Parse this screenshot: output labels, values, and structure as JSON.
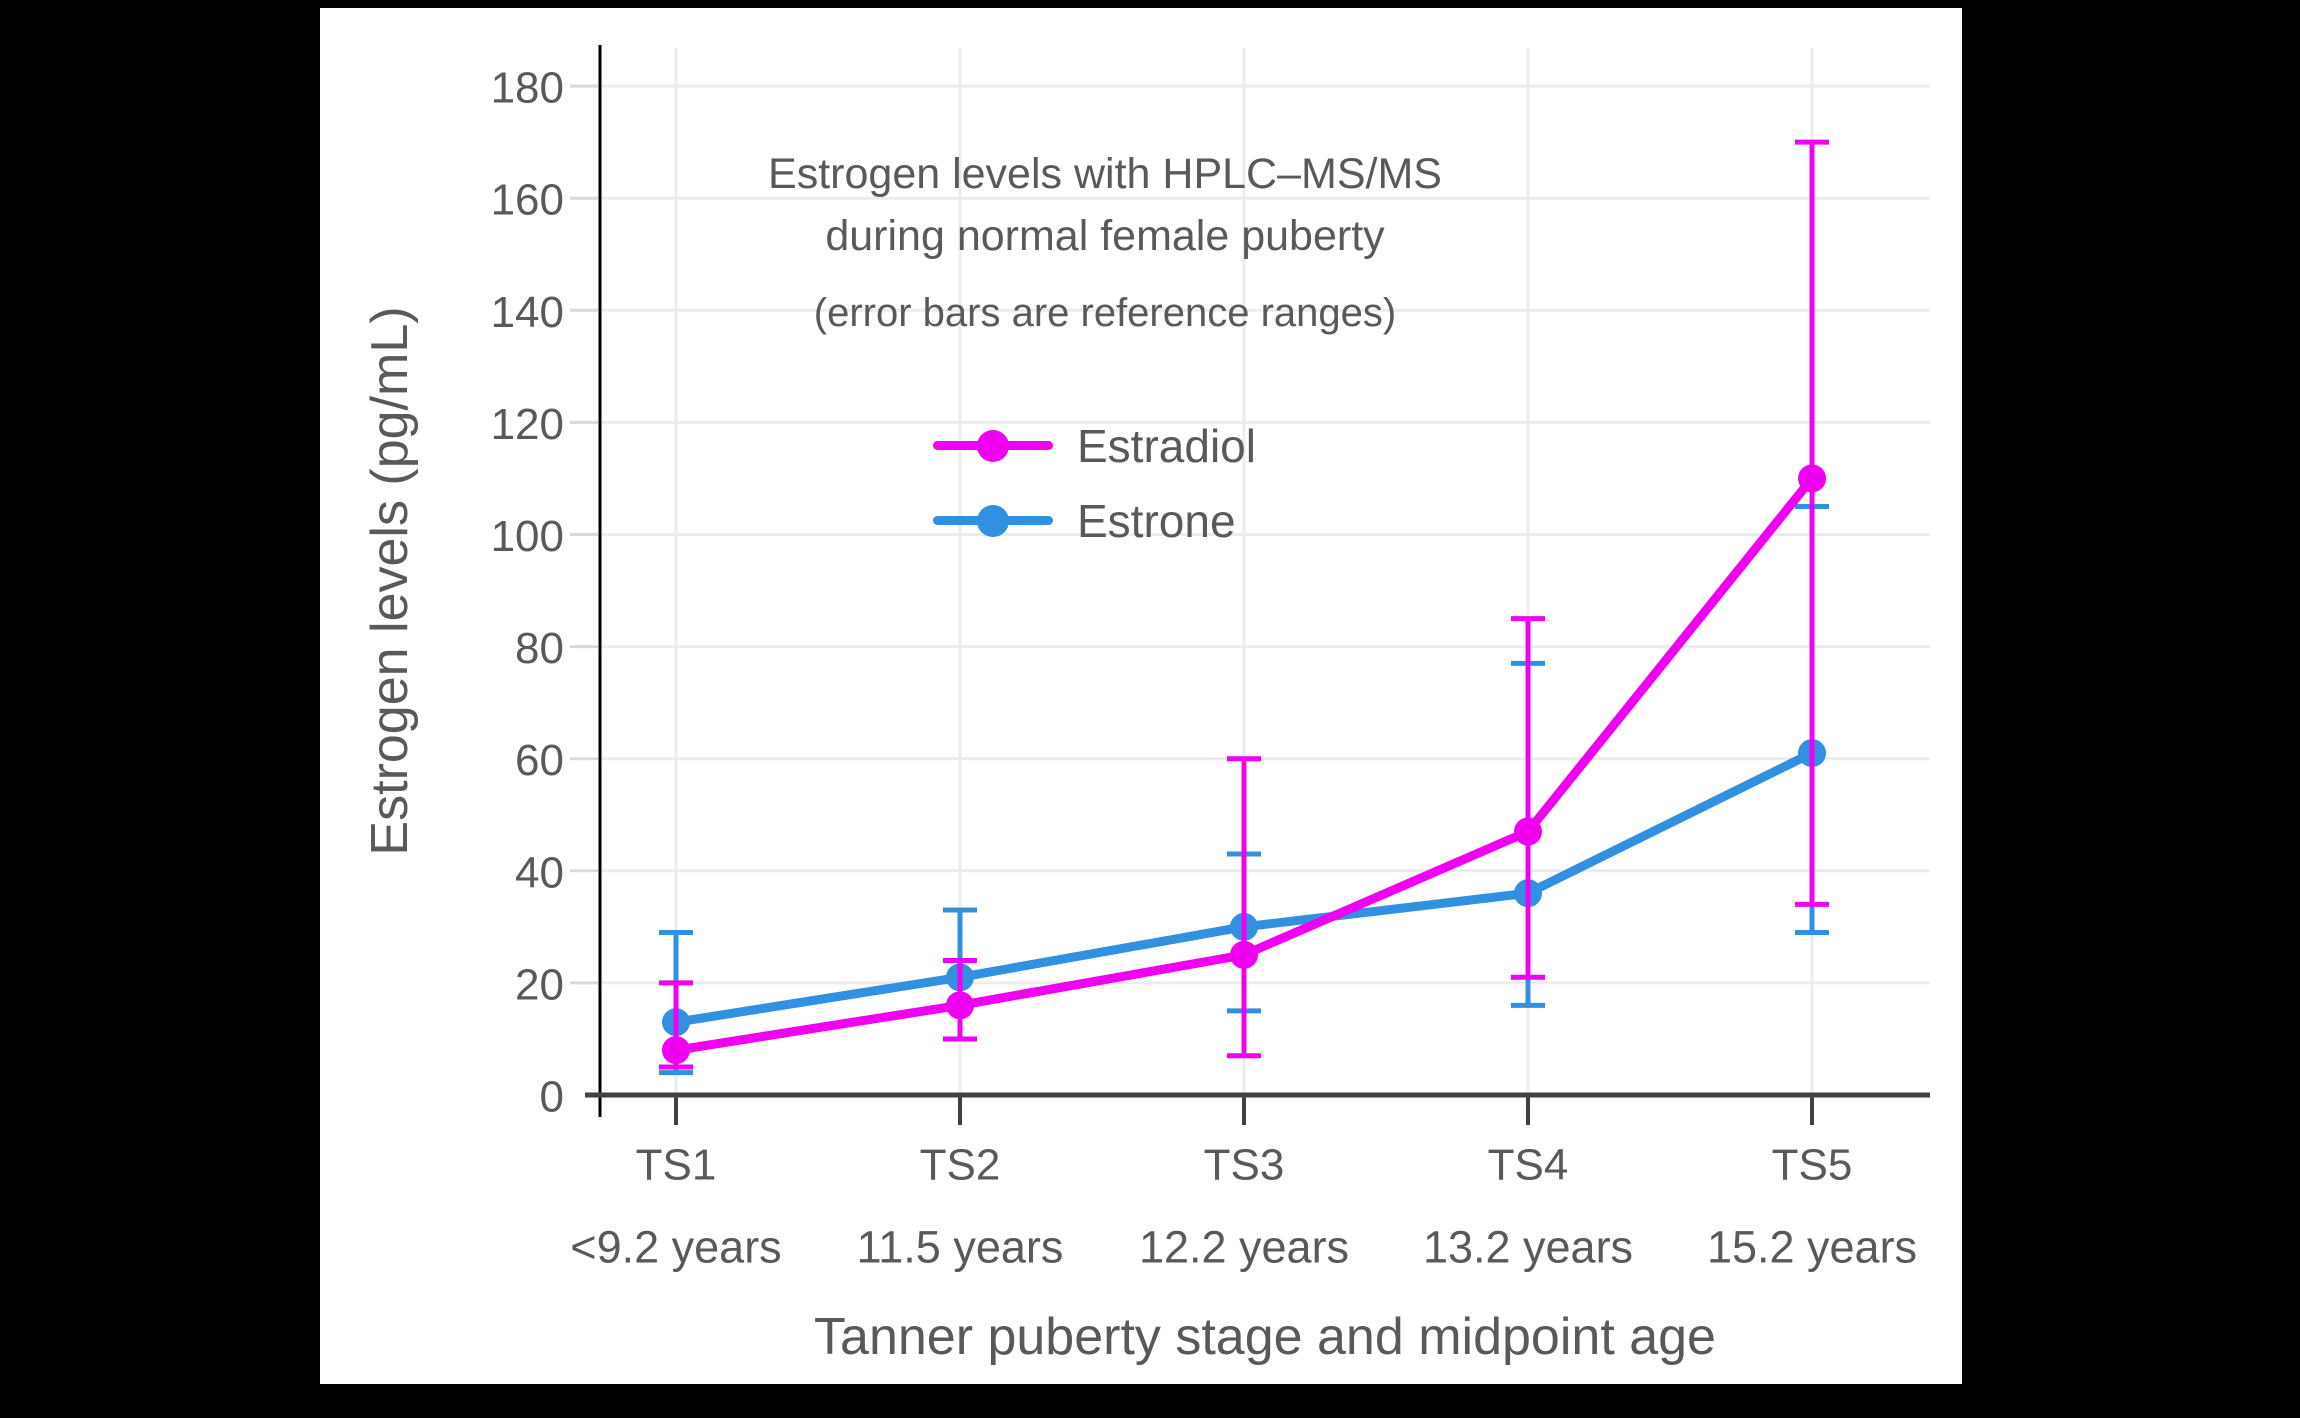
{
  "header": {
    "title_line1": "Estrogen levels with HPLC–MS/MS",
    "title_line2": "during normal female puberty",
    "subtitle": "(error bars are reference ranges)"
  },
  "axes": {
    "y_title": "Estrogen levels (pg/mL)",
    "x_title": "Tanner puberty stage and midpoint age"
  },
  "colors": {
    "background": "#000000",
    "canvas": "#ffffff",
    "text": "#595959",
    "grid": "#ececec",
    "y_axis": "#000000",
    "x_axis": "#424242",
    "outer_tick": "#d9d9d9"
  },
  "chart_data": {
    "type": "line",
    "title": "Estrogen levels with HPLC–MS/MS during normal female puberty",
    "subtitle": "(error bars are reference ranges)",
    "xlabel": "Tanner puberty stage and midpoint age",
    "ylabel": "Estrogen levels (pg/mL)",
    "categories": [
      "TS1",
      "TS2",
      "TS3",
      "TS4",
      "TS5"
    ],
    "category_ages": [
      "<9.2 years",
      "11.5 years",
      "12.2 years",
      "13.2 years",
      "15.2 years"
    ],
    "ylim": [
      0,
      187
    ],
    "ytick_step": 20,
    "grid": true,
    "legend_position": "upper center inside",
    "error_bars_meaning": "reference ranges",
    "series": [
      {
        "name": "Estradiol",
        "color": "#F000F0",
        "values": [
          8,
          16,
          25,
          47,
          110
        ],
        "error_low": [
          5,
          10,
          7,
          21,
          34
        ],
        "error_high": [
          20,
          24,
          60,
          85,
          170
        ]
      },
      {
        "name": "Estrone",
        "color": "#3190E0",
        "values": [
          13,
          21,
          30,
          36,
          61
        ],
        "error_low": [
          4,
          10,
          15,
          16,
          29
        ],
        "error_high": [
          29,
          33,
          43,
          77,
          105
        ]
      }
    ]
  }
}
